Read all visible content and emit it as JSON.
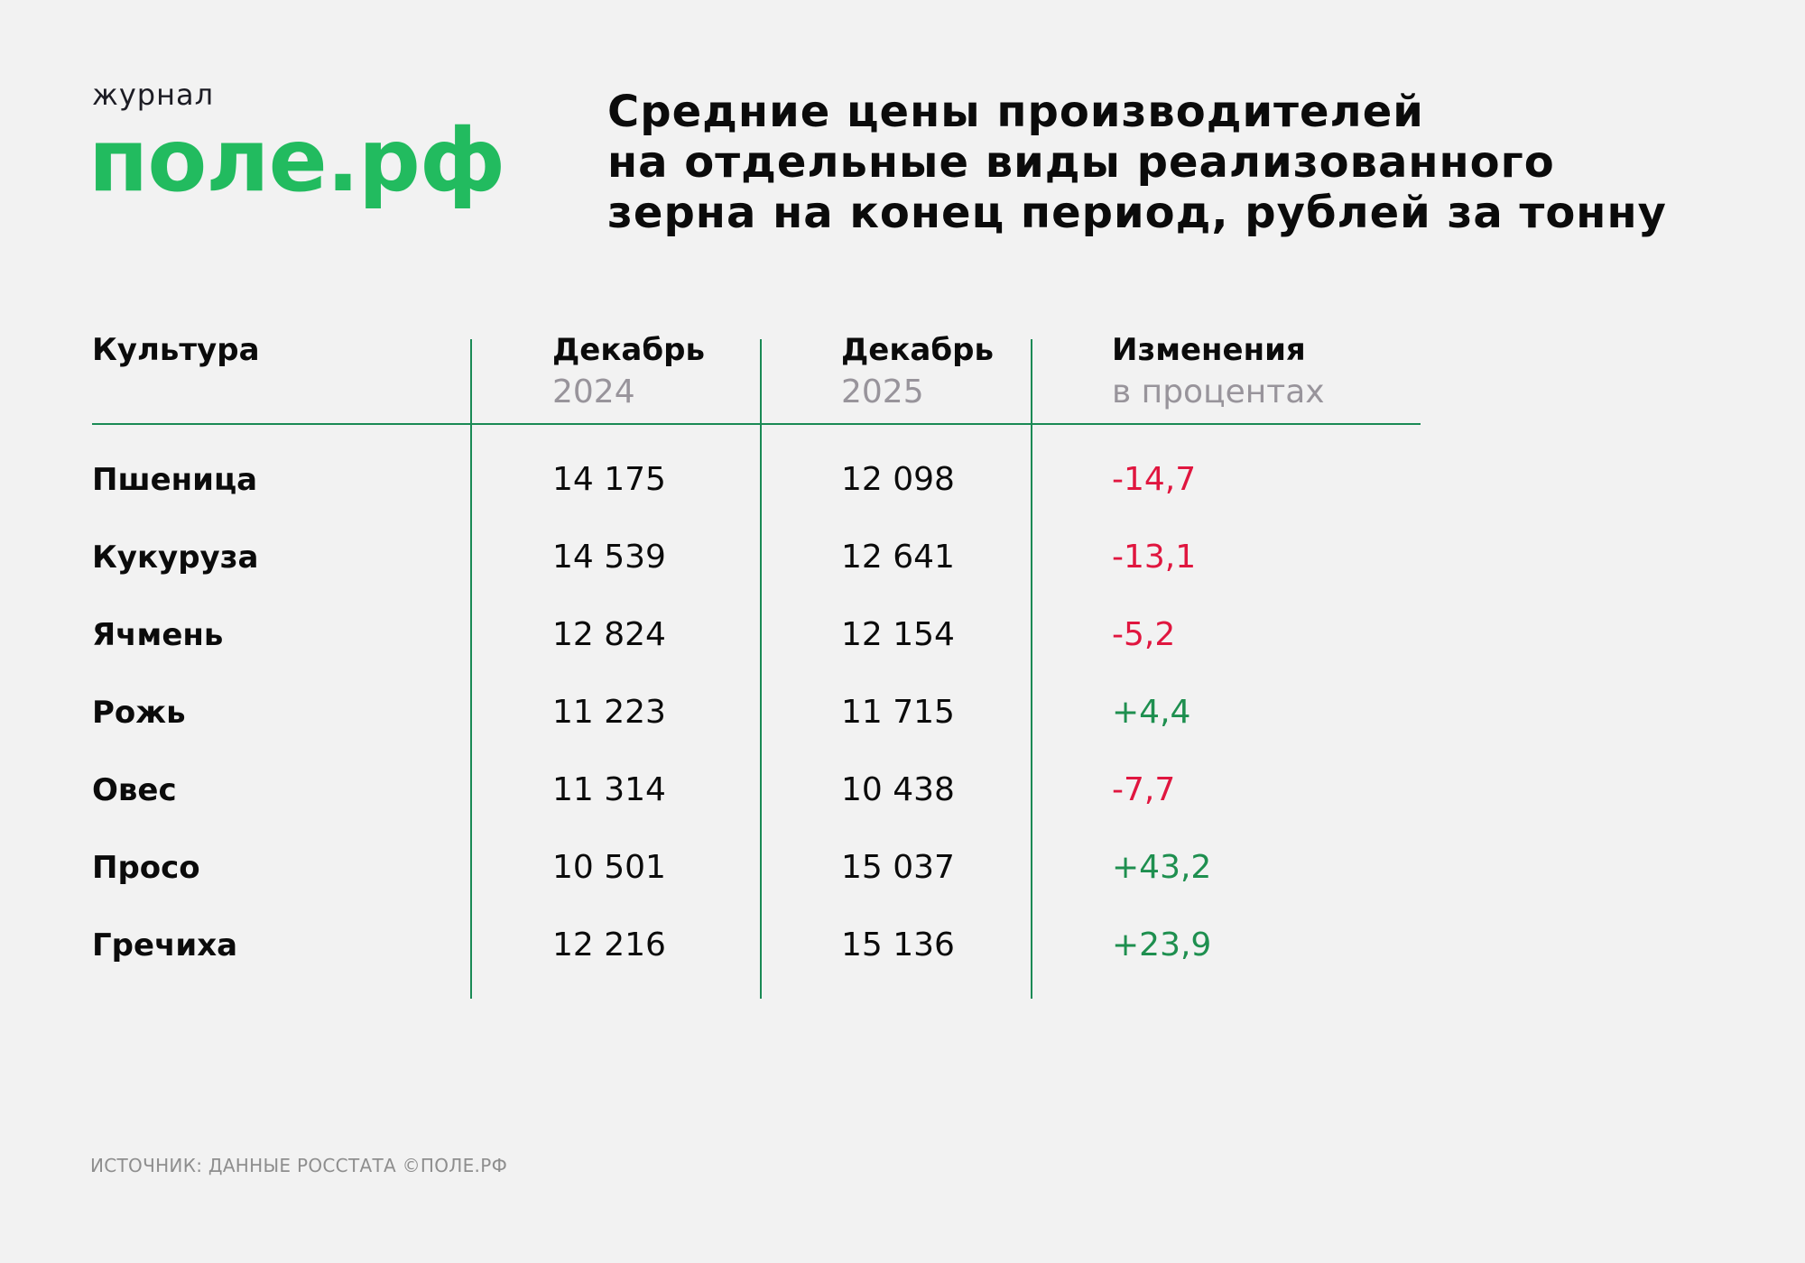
{
  "logo": {
    "small": "журнал",
    "big": "поле.рф"
  },
  "title": [
    "Средние цены производителей",
    "на отдельные виды реализованного",
    "зерна на конец период, рублей за тонну"
  ],
  "table": {
    "headers": [
      {
        "label": "Культура",
        "sub": ""
      },
      {
        "label": "Декабрь",
        "sub": "2024"
      },
      {
        "label": "Декабрь",
        "sub": "2025"
      },
      {
        "label": "Изменения",
        "sub": "в процентах"
      }
    ],
    "rows": [
      {
        "crop": "Пшеница",
        "dec2024": "14 175",
        "dec2025": "12 098",
        "change": "-14,7"
      },
      {
        "crop": "Кукуруза",
        "dec2024": "14 539",
        "dec2025": "12 641",
        "change": "-13,1"
      },
      {
        "crop": "Ячмень",
        "dec2024": "12 824",
        "dec2025": "12 154",
        "change": "-5,2"
      },
      {
        "crop": "Рожь",
        "dec2024": "11 223",
        "dec2025": "11 715",
        "change": "+4,4"
      },
      {
        "crop": "Овес",
        "dec2024": "11 314",
        "dec2025": "10 438",
        "change": "-7,7"
      },
      {
        "crop": "Просо",
        "dec2024": "10 501",
        "dec2025": "15 037",
        "change": "+43,2"
      },
      {
        "crop": "Гречиха",
        "dec2024": "12 216",
        "dec2025": "15 136",
        "change": "+23,9"
      }
    ]
  },
  "colors": {
    "accent": "#22bb5f",
    "line": "#1a8a55",
    "negative": "#e0163f",
    "positive": "#1e8f4f"
  },
  "footer": "ИСТОЧНИК: ДАННЫЕ РОССТАТА ©ПОЛЕ.РФ"
}
